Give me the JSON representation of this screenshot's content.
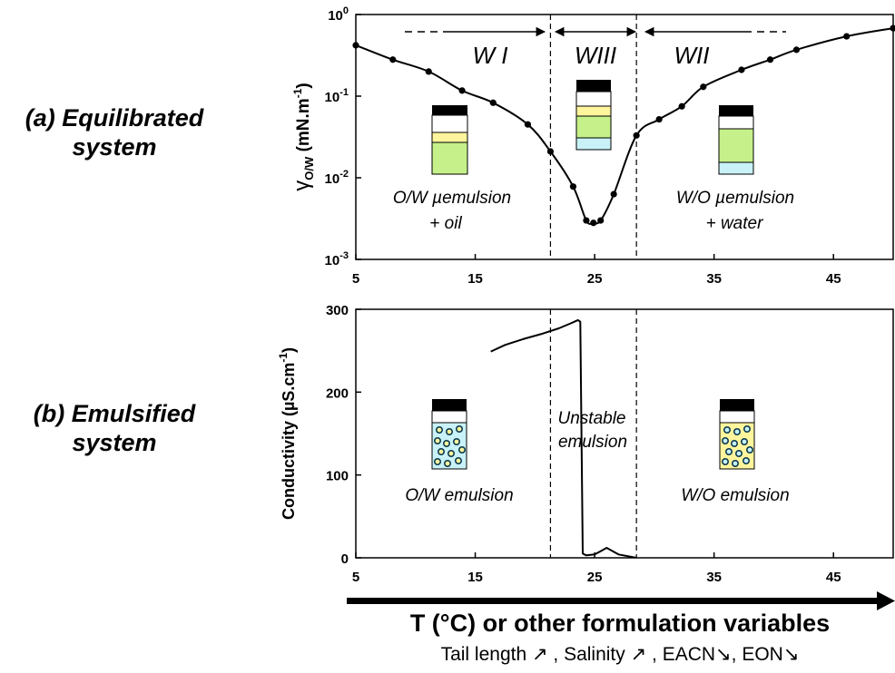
{
  "panel_labels": {
    "a_line1": "(a) Equilibrated",
    "a_line2": "system",
    "b_line1": "(b) Emulsified",
    "b_line2": "system"
  },
  "axis": {
    "title": "T (°C) or other formulation variables",
    "subtitle": "Tail length ↗ , Salinity ↗ , EACN↘, EON↘"
  },
  "colors": {
    "line": "#000000",
    "oil": "#fff59d",
    "microemulsion": "#c5f08a",
    "water": "#c8f2f7",
    "droplet_edge": "#0d3b4f",
    "cap": "#000000"
  },
  "chart_data": [
    {
      "type": "line",
      "panel": "a",
      "ylabel": "γ_O/W (mN.m⁻¹)",
      "ylabel_main": "γ",
      "ylabel_sub": "O/W",
      "ylabel_unit": " (mN.m",
      "ylabel_exp": "-1",
      "ylabel_close": ")",
      "yscale": "log",
      "xlim": [
        5,
        50
      ],
      "ylim": [
        0.001,
        1
      ],
      "xticks": [
        "5",
        "15",
        "25",
        "35",
        "45"
      ],
      "xtick_values": [
        5,
        15,
        25,
        35,
        45
      ],
      "yticks": [
        {
          "base": "10",
          "exp": "0"
        },
        {
          "base": "10",
          "exp": "-1"
        },
        {
          "base": "10",
          "exp": "-2"
        },
        {
          "base": "10",
          "exp": "-3"
        }
      ],
      "ytick_values": [
        1,
        0.1,
        0.01,
        0.001
      ],
      "vlines": [
        21.3,
        28.5
      ],
      "regions": [
        "W I",
        "WIII",
        "WII"
      ],
      "annotations": [
        "O/W µemulsion",
        "+ oil",
        "W/O µemulsion",
        "+ water"
      ],
      "series": [
        {
          "x": [
            5,
            8.1,
            11.1,
            13.9,
            16.5,
            19.4,
            21.3,
            23.2,
            24.3,
            24.9,
            25.5,
            26.6,
            28.5,
            30.4,
            32.3,
            34.1,
            37.3,
            39.7,
            41.9,
            46.1,
            50
          ],
          "y": [
            0.42,
            0.28,
            0.2,
            0.117,
            0.083,
            0.045,
            0.021,
            0.0078,
            0.003,
            0.0028,
            0.003,
            0.0063,
            0.033,
            0.052,
            0.075,
            0.13,
            0.21,
            0.28,
            0.37,
            0.54,
            0.68
          ]
        }
      ]
    },
    {
      "type": "line",
      "panel": "b",
      "ylabel": "Conductivity (µS.cm⁻¹)",
      "ylabel_main": "Conductivity (µS.cm",
      "ylabel_exp": "-1",
      "ylabel_close": ")",
      "xlim": [
        5,
        50
      ],
      "ylim": [
        0,
        300
      ],
      "xticks": [
        "5",
        "15",
        "25",
        "35",
        "45"
      ],
      "xtick_values": [
        5,
        15,
        25,
        35,
        45
      ],
      "yticks": [
        "0",
        "100",
        "200",
        "300"
      ],
      "ytick_values": [
        0,
        100,
        200,
        300
      ],
      "vlines": [
        21.3,
        28.5
      ],
      "annotations": [
        "O/W emulsion",
        "Unstable",
        "emulsion",
        "W/O emulsion"
      ],
      "series": [
        {
          "x": [
            16.3,
            17.5,
            19,
            20.5,
            22,
            23,
            23.6,
            23.8,
            23.9,
            24,
            24.3,
            25,
            25.5,
            26,
            27,
            28.5
          ],
          "y": [
            249,
            257,
            264,
            270,
            277,
            283,
            287,
            285,
            150,
            5,
            3,
            4,
            8,
            12,
            4,
            0
          ]
        }
      ]
    }
  ]
}
